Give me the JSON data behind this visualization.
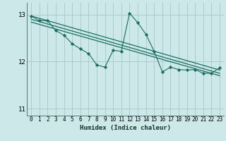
{
  "xlabel": "Humidex (Indice chaleur)",
  "bg_color": "#cce8e8",
  "grid_color": "#aacccc",
  "line_color": "#1a6e60",
  "xlim": [
    -0.5,
    23.5
  ],
  "ylim": [
    10.85,
    13.25
  ],
  "yticks": [
    11,
    12,
    13
  ],
  "xticks": [
    0,
    1,
    2,
    3,
    4,
    5,
    6,
    7,
    8,
    9,
    10,
    11,
    12,
    13,
    14,
    15,
    16,
    17,
    18,
    19,
    20,
    21,
    22,
    23
  ],
  "series1_x": [
    0,
    1,
    2,
    3,
    4,
    5,
    6,
    7,
    8,
    9,
    10,
    11,
    12,
    13,
    14,
    15,
    16,
    17,
    18,
    19,
    20,
    21,
    22,
    23
  ],
  "series1_y": [
    12.97,
    12.87,
    12.87,
    12.66,
    12.56,
    12.38,
    12.27,
    12.17,
    11.93,
    11.88,
    12.24,
    12.22,
    13.03,
    12.83,
    12.58,
    12.22,
    11.78,
    11.88,
    11.83,
    11.82,
    11.83,
    11.75,
    11.75,
    11.87
  ],
  "trend_lines": [
    {
      "x0": 0.0,
      "y0": 12.97,
      "x1": 23.0,
      "y1": 11.82
    },
    {
      "x0": 0.0,
      "y0": 12.9,
      "x1": 23.0,
      "y1": 11.75
    },
    {
      "x0": 0.0,
      "y0": 12.84,
      "x1": 23.0,
      "y1": 11.7
    }
  ]
}
